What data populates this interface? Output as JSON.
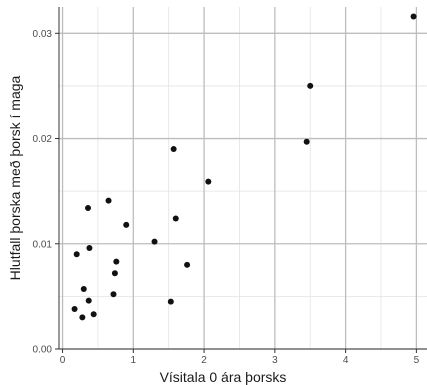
{
  "chart_data": {
    "type": "scatter",
    "title": "",
    "xlabel": "Vísitala 0 ára þorsks",
    "ylabel": "Hlutfall þorska með þorsk í maga",
    "xlim": [
      -0.05,
      5.15
    ],
    "ylim": [
      0.0,
      0.0325
    ],
    "xticks": [
      0,
      1,
      2,
      3,
      4,
      5
    ],
    "yticks": [
      0.0,
      0.01,
      0.02,
      0.03
    ],
    "xtick_labels": [
      "0",
      "1",
      "2",
      "3",
      "4",
      "5"
    ],
    "ytick_labels": [
      "0.00",
      "0.01",
      "0.02",
      "0.03"
    ],
    "grid": true,
    "legend": "none",
    "point_color": "#111111",
    "points": [
      {
        "x": 0.17,
        "y": 0.0038
      },
      {
        "x": 0.2,
        "y": 0.009
      },
      {
        "x": 0.28,
        "y": 0.003
      },
      {
        "x": 0.3,
        "y": 0.0057
      },
      {
        "x": 0.36,
        "y": 0.0134
      },
      {
        "x": 0.37,
        "y": 0.0046
      },
      {
        "x": 0.38,
        "y": 0.0096
      },
      {
        "x": 0.44,
        "y": 0.0033
      },
      {
        "x": 0.65,
        "y": 0.0141
      },
      {
        "x": 0.72,
        "y": 0.0052
      },
      {
        "x": 0.74,
        "y": 0.0072
      },
      {
        "x": 0.76,
        "y": 0.0083
      },
      {
        "x": 0.9,
        "y": 0.0118
      },
      {
        "x": 1.3,
        "y": 0.0102
      },
      {
        "x": 1.53,
        "y": 0.0045
      },
      {
        "x": 1.57,
        "y": 0.019
      },
      {
        "x": 1.6,
        "y": 0.0124
      },
      {
        "x": 1.76,
        "y": 0.008
      },
      {
        "x": 2.06,
        "y": 0.0159
      },
      {
        "x": 3.45,
        "y": 0.0197
      },
      {
        "x": 3.5,
        "y": 0.025
      },
      {
        "x": 4.96,
        "y": 0.0316
      }
    ]
  }
}
